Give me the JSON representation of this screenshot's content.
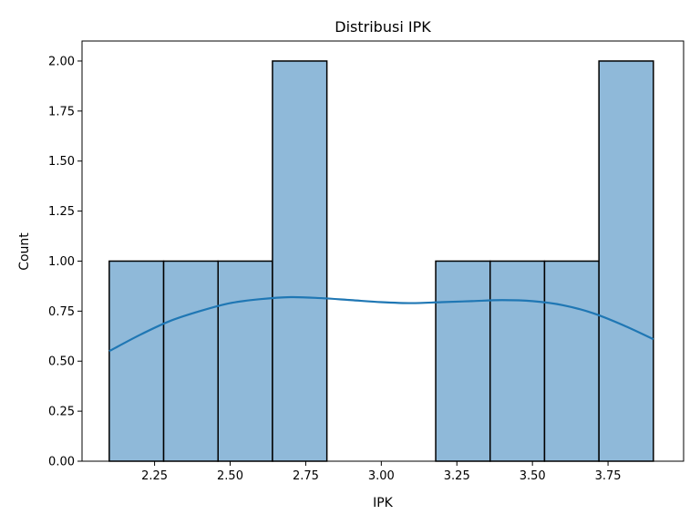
{
  "chart_data": {
    "type": "bar",
    "subtype": "histogram",
    "title": "Distribusi IPK",
    "xlabel": "IPK",
    "ylabel": "Count",
    "xlim": [
      2.01,
      4.0
    ],
    "ylim": [
      0,
      2.1
    ],
    "x_ticks": [
      "2.25",
      "2.50",
      "2.75",
      "3.00",
      "3.25",
      "3.50",
      "3.75"
    ],
    "y_ticks": [
      "0.00",
      "0.25",
      "0.50",
      "0.75",
      "1.00",
      "1.25",
      "1.50",
      "1.75",
      "2.00"
    ],
    "bins": [
      {
        "start": 2.1,
        "end": 2.28,
        "count": 1
      },
      {
        "start": 2.28,
        "end": 2.46,
        "count": 1
      },
      {
        "start": 2.46,
        "end": 2.64,
        "count": 1
      },
      {
        "start": 2.64,
        "end": 2.82,
        "count": 2
      },
      {
        "start": 2.82,
        "end": 3.0,
        "count": 0
      },
      {
        "start": 3.0,
        "end": 3.18,
        "count": 0
      },
      {
        "start": 3.18,
        "end": 3.36,
        "count": 1
      },
      {
        "start": 3.36,
        "end": 3.54,
        "count": 1
      },
      {
        "start": 3.54,
        "end": 3.72,
        "count": 1
      },
      {
        "start": 3.72,
        "end": 3.9,
        "count": 2
      }
    ],
    "kde": {
      "x": [
        2.1,
        2.2,
        2.3,
        2.4,
        2.5,
        2.6,
        2.7,
        2.8,
        2.9,
        3.0,
        3.1,
        3.2,
        3.3,
        3.4,
        3.5,
        3.6,
        3.7,
        3.8,
        3.9
      ],
      "y": [
        0.55,
        0.63,
        0.7,
        0.75,
        0.79,
        0.81,
        0.82,
        0.815,
        0.805,
        0.795,
        0.79,
        0.795,
        0.8,
        0.805,
        0.8,
        0.78,
        0.74,
        0.68,
        0.61
      ]
    },
    "colors": {
      "bar_fill": "#8fb9d9",
      "bar_edge": "#000000",
      "kde_line": "#1f77b4"
    },
    "grid": false,
    "legend": "none"
  }
}
